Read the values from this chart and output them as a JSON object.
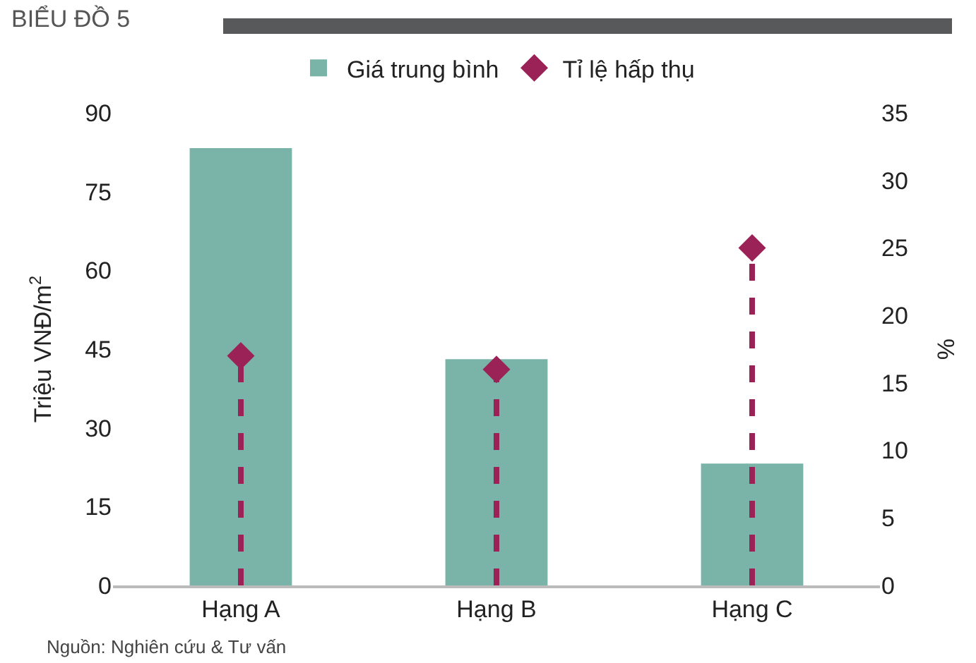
{
  "chart_data": {
    "type": "bar",
    "title": "BIỂU ĐỒ 5",
    "categories": [
      "Hạng A",
      "Hạng B",
      "Hạng C"
    ],
    "series": [
      {
        "name": "Giá trung bình",
        "color": "#7ab3a8",
        "values": [
          83.3,
          43.1,
          23.2
        ]
      },
      {
        "name": "Tỉ lệ hấp thụ",
        "type": "lollipop",
        "axis": "y2",
        "color": "#9b2257",
        "values": [
          17,
          16,
          25
        ],
        "marker": "diamond",
        "line_style": "dashed"
      }
    ],
    "ylabel": "Triệu VNĐ/m$^{2}$",
    "y2label": "%",
    "ylim": [
      0,
      90
    ],
    "yticks": [
      0,
      15,
      30,
      45,
      60,
      75,
      90
    ],
    "y2lim": [
      0,
      35
    ],
    "y2ticks": [
      0,
      5,
      10,
      15,
      20,
      25,
      30,
      35
    ],
    "grid": false,
    "legend": "top",
    "annotations": [
      "Nguồn: Nghiên cứu & Tư vấn"
    ]
  }
}
